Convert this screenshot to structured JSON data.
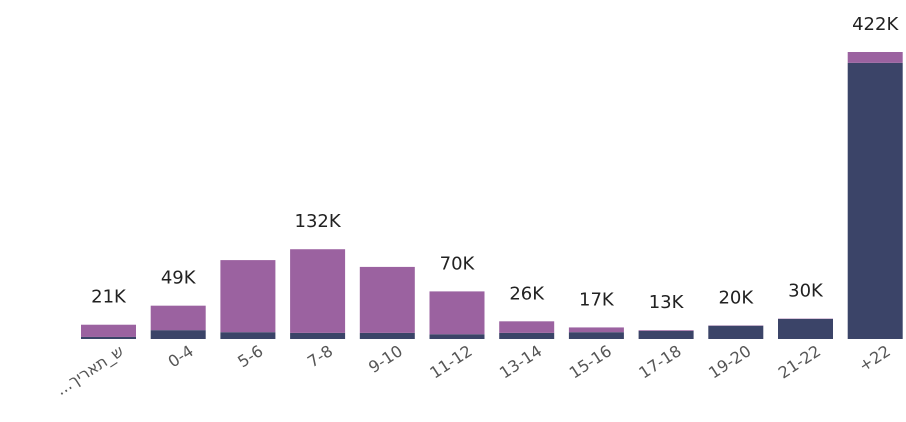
{
  "chart_data": {
    "type": "stacked_bar",
    "categories": [
      "ש_תאריך...",
      "0-4",
      "5-6",
      "7-8",
      "9-10",
      "11-12",
      "13-14",
      "15-16",
      "17-18",
      "19-20",
      "21-22",
      "+22"
    ],
    "series": [
      {
        "color": "#3b4468",
        "values": [
          3000,
          13000,
          10000,
          9000,
          9000,
          7000,
          9000,
          10000,
          12000,
          19500,
          29500,
          406000
        ]
      },
      {
        "color": "#9b62a0",
        "values": [
          18000,
          36000,
          106000,
          123000,
          97000,
          63000,
          17000,
          7000,
          1000,
          500,
          500,
          16000
        ]
      }
    ],
    "totals": [
      21000,
      49000,
      null,
      132000,
      null,
      70000,
      26000,
      17000,
      13000,
      20000,
      30000,
      422000
    ],
    "total_labels": [
      "21K",
      "49K",
      null,
      "132K",
      null,
      "70K",
      "26K",
      "17K",
      "13K",
      "20K",
      "30K",
      "422K"
    ],
    "ylim": [
      0,
      422000
    ]
  }
}
